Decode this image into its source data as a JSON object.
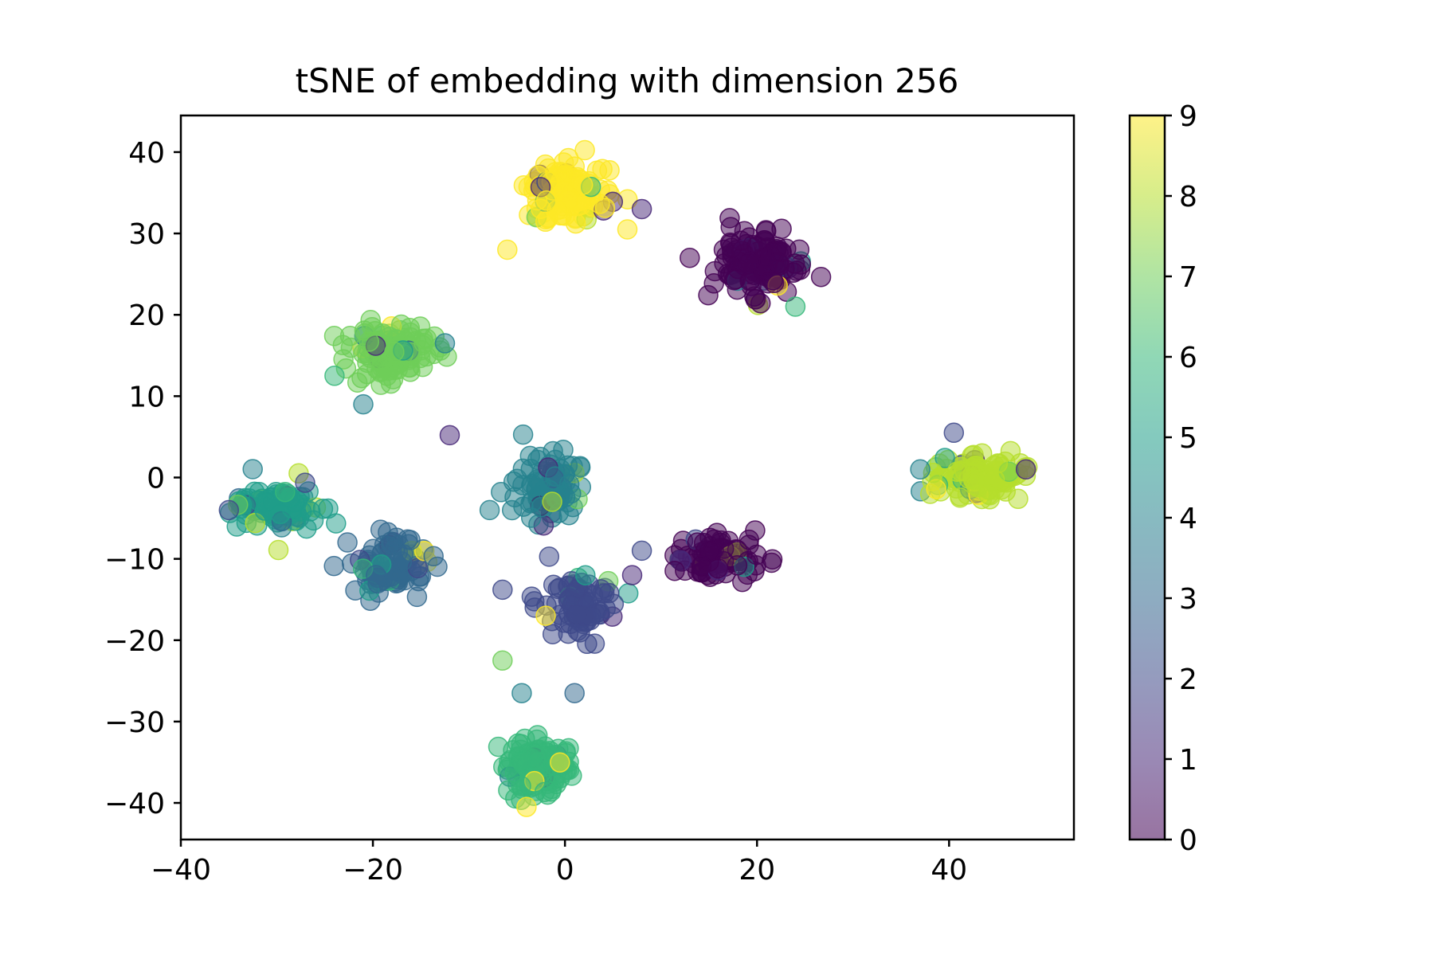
{
  "chart_data": {
    "type": "scatter",
    "title": "tSNE of embedding with dimension 256",
    "xlabel": "",
    "ylabel": "",
    "xlim": [
      -40,
      53
    ],
    "ylim": [
      -44.5,
      44.5
    ],
    "xticks": [
      -40,
      -20,
      0,
      20,
      40
    ],
    "yticks": [
      -40,
      -30,
      -20,
      -10,
      0,
      10,
      20,
      30,
      40
    ],
    "colorbar": {
      "label": "",
      "min": 0,
      "max": 9,
      "ticks": [
        0,
        1,
        2,
        3,
        4,
        5,
        6,
        7,
        8,
        9
      ],
      "colormap": "viridis"
    },
    "marker_alpha": 0.5,
    "clusters": [
      {
        "label": 9,
        "center": [
          0,
          35
        ],
        "spread": [
          2.6,
          2.2
        ],
        "count": 140
      },
      {
        "label": 0,
        "center": [
          20,
          26
        ],
        "spread": [
          2.8,
          2.2
        ],
        "count": 140
      },
      {
        "label": 7,
        "center": [
          -18,
          15.5
        ],
        "spread": [
          2.4,
          2.0
        ],
        "count": 120
      },
      {
        "label": 8,
        "center": [
          43,
          0
        ],
        "spread": [
          2.8,
          1.8
        ],
        "count": 130
      },
      {
        "label": 4,
        "center": [
          -2,
          -1
        ],
        "spread": [
          2.2,
          2.5
        ],
        "count": 100
      },
      {
        "label": 5,
        "center": [
          -30,
          -3.5
        ],
        "spread": [
          2.8,
          2.0
        ],
        "count": 110
      },
      {
        "label": 3,
        "center": [
          -18,
          -11
        ],
        "spread": [
          2.8,
          2.4
        ],
        "count": 110
      },
      {
        "label": 0,
        "center": [
          16,
          -10
        ],
        "spread": [
          3.0,
          1.6
        ],
        "count": 90
      },
      {
        "label": 2,
        "center": [
          2,
          -16
        ],
        "spread": [
          2.3,
          2.2
        ],
        "count": 80
      },
      {
        "label": 6,
        "center": [
          -3,
          -35.5
        ],
        "spread": [
          2.2,
          2.0
        ],
        "count": 130
      }
    ],
    "extra_points": [
      {
        "x": -12,
        "y": 5.2,
        "label": 1
      },
      {
        "x": -6.5,
        "y": -13.8,
        "label": 2
      },
      {
        "x": -6.5,
        "y": -22.5,
        "label": 7
      },
      {
        "x": -4.5,
        "y": -26.5,
        "label": 4
      },
      {
        "x": 1,
        "y": -26.5,
        "label": 3
      },
      {
        "x": -4,
        "y": -40.5,
        "label": 9
      },
      {
        "x": 8,
        "y": 33,
        "label": 1
      },
      {
        "x": 6.5,
        "y": 30.5,
        "label": 9
      },
      {
        "x": -6,
        "y": 28,
        "label": 9
      },
      {
        "x": 24,
        "y": 21,
        "label": 6
      },
      {
        "x": 13,
        "y": 27,
        "label": 0
      },
      {
        "x": 7,
        "y": -12,
        "label": 1
      },
      {
        "x": 40.5,
        "y": 5.5,
        "label": 2
      },
      {
        "x": 37,
        "y": 1,
        "label": 4
      },
      {
        "x": 48,
        "y": 1,
        "label": 1
      },
      {
        "x": -2,
        "y": -17,
        "label": 9
      },
      {
        "x": 8,
        "y": -9,
        "label": 2
      },
      {
        "x": -21,
        "y": 9,
        "label": 4
      },
      {
        "x": -24,
        "y": 12.5,
        "label": 6
      },
      {
        "x": -12.5,
        "y": 16.5,
        "label": 4
      },
      {
        "x": -35,
        "y": -4,
        "label": 2
      }
    ]
  }
}
